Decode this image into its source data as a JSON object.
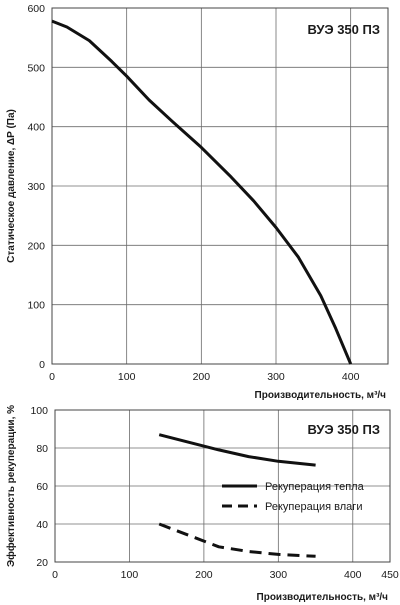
{
  "chart_data": [
    {
      "type": "line",
      "title": "ВУЭ  350 ПЗ",
      "xlabel": "Производительность, м³/ч",
      "ylabel": "Статическое давление, ΔP (Па)",
      "xlim": [
        0,
        450
      ],
      "ylim": [
        0,
        600
      ],
      "x_ticks": [
        "0",
        "100",
        "200",
        "300",
        "400"
      ],
      "y_ticks": [
        "0",
        "100",
        "200",
        "300",
        "400",
        "500",
        "600"
      ],
      "grid": true,
      "series": [
        {
          "x": [
            0,
            20,
            50,
            80,
            100,
            130,
            160,
            200,
            240,
            270,
            300,
            330,
            360,
            380,
            400
          ],
          "y": [
            578,
            568,
            545,
            510,
            485,
            445,
            410,
            365,
            315,
            275,
            230,
            180,
            115,
            60,
            0
          ],
          "style": "solid"
        }
      ]
    },
    {
      "type": "line",
      "title": "ВУЭ  350 ПЗ",
      "xlabel": "Производительность, м³/ч",
      "ylabel": "Эффективность рекуперации, %",
      "xlim": [
        0,
        450
      ],
      "ylim": [
        20,
        100
      ],
      "x_ticks": [
        "0",
        "100",
        "200",
        "300",
        "400",
        "450"
      ],
      "y_ticks": [
        "20",
        "40",
        "60",
        "80",
        "100"
      ],
      "grid": true,
      "legend": "right",
      "series": [
        {
          "name": "Рекуперация тепла",
          "x": [
            140,
            180,
            220,
            260,
            300,
            350
          ],
          "y": [
            87,
            83,
            79,
            75.5,
            73,
            71
          ],
          "style": "solid"
        },
        {
          "name": "Рекуперация влаги",
          "x": [
            140,
            180,
            220,
            260,
            300,
            350
          ],
          "y": [
            40,
            34,
            28,
            25.5,
            24,
            23
          ],
          "style": "dashed"
        }
      ]
    }
  ]
}
